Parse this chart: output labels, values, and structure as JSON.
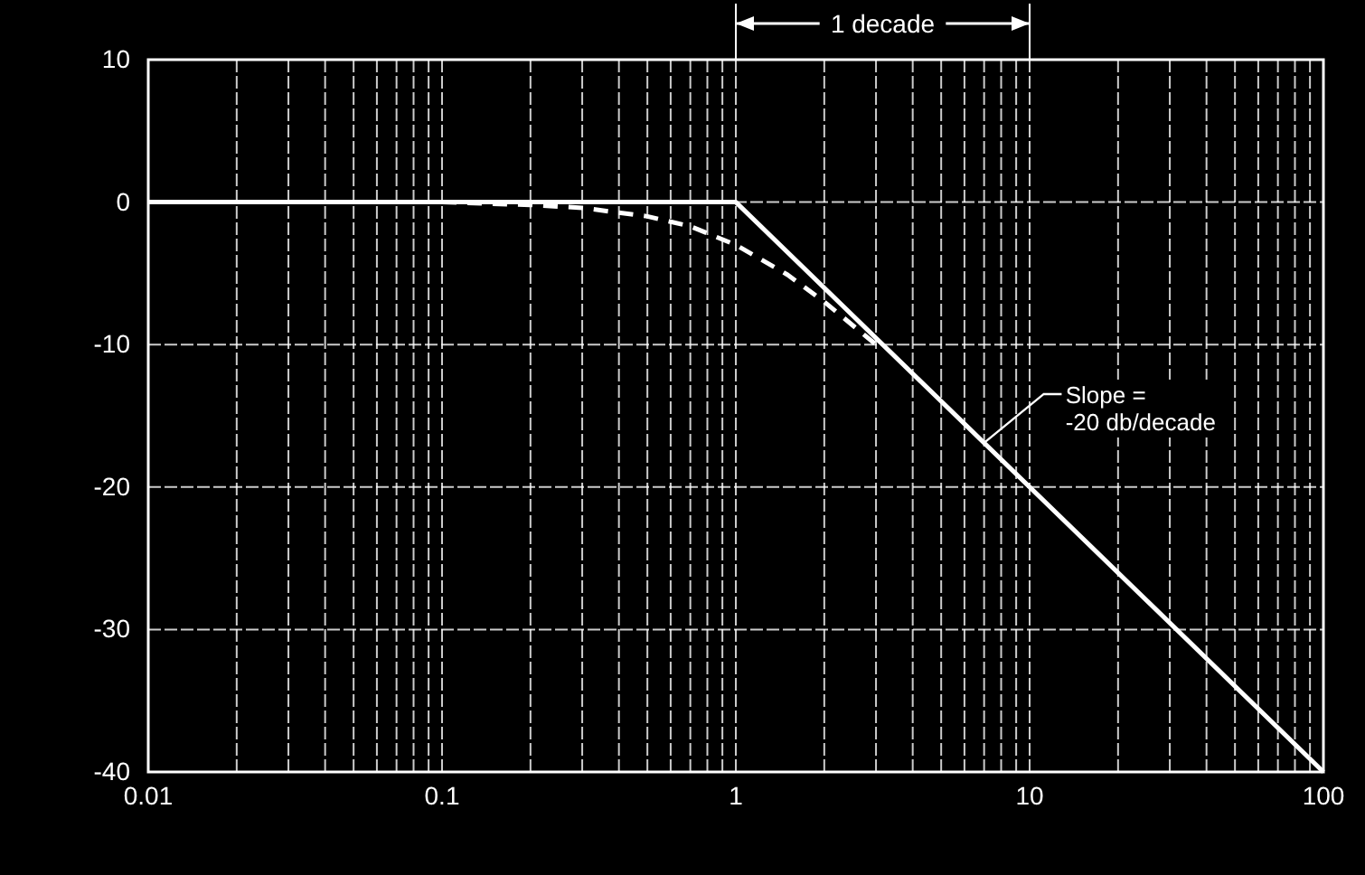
{
  "chart_data": {
    "type": "line",
    "log": "x",
    "grid": true,
    "marker": "none",
    "xlim": [
      0.01,
      100
    ],
    "ylim": [
      -40,
      10
    ],
    "xticks": [
      0.01,
      {
        "value": 0.02,
        "label": null
      },
      {
        "value": 0.03,
        "label": null
      },
      {
        "value": 0.04,
        "label": null
      },
      {
        "value": 0.05,
        "label": null
      },
      {
        "value": 0.06,
        "label": null
      },
      {
        "value": 0.07,
        "label": null
      },
      {
        "value": 0.08,
        "label": null
      },
      {
        "value": 0.09,
        "label": null
      },
      0.1,
      {
        "value": 0.2,
        "label": null
      },
      {
        "value": 0.3,
        "label": null
      },
      {
        "value": 0.4,
        "label": null
      },
      {
        "value": 0.5,
        "label": null
      },
      {
        "value": 0.6,
        "label": null
      },
      {
        "value": 0.7,
        "label": null
      },
      {
        "value": 0.8,
        "label": null
      },
      {
        "value": 0.9,
        "label": null
      },
      1,
      {
        "value": 2,
        "label": null
      },
      {
        "value": 3,
        "label": null
      },
      {
        "value": 4,
        "label": null
      },
      {
        "value": 5,
        "label": null
      },
      {
        "value": 6,
        "label": null
      },
      {
        "value": 7,
        "label": null
      },
      {
        "value": 8,
        "label": null
      },
      {
        "value": 9,
        "label": null
      },
      10,
      {
        "value": 20,
        "label": null
      },
      {
        "value": 30,
        "label": null
      },
      {
        "value": 40,
        "label": null
      },
      {
        "value": 50,
        "label": null
      },
      {
        "value": 60,
        "label": null
      },
      {
        "value": 70,
        "label": null
      },
      {
        "value": 80,
        "label": null
      },
      {
        "value": 90,
        "label": null
      },
      100
    ],
    "yticks": [
      10,
      0,
      -10,
      -20,
      -30,
      -40
    ],
    "series": [
      {
        "color": "#ffffff",
        "line_style": "solid",
        "x": [
          0.01,
          1,
          100
        ],
        "values": [
          0,
          0,
          -40
        ]
      },
      {
        "color": "#ffffff",
        "line_style": "dashed",
        "x": [
          0.1,
          0.2,
          0.3,
          0.5,
          0.7,
          1,
          1.5,
          2,
          3
        ],
        "values": [
          0,
          -0.2,
          -0.4,
          -1,
          -1.7,
          -3,
          -5.1,
          -7,
          -10
        ]
      }
    ],
    "annotations": [
      "1 decade",
      {
        "text": "Slope = -20 db/decade",
        "x": 7,
        "y": -16.9
      }
    ]
  }
}
